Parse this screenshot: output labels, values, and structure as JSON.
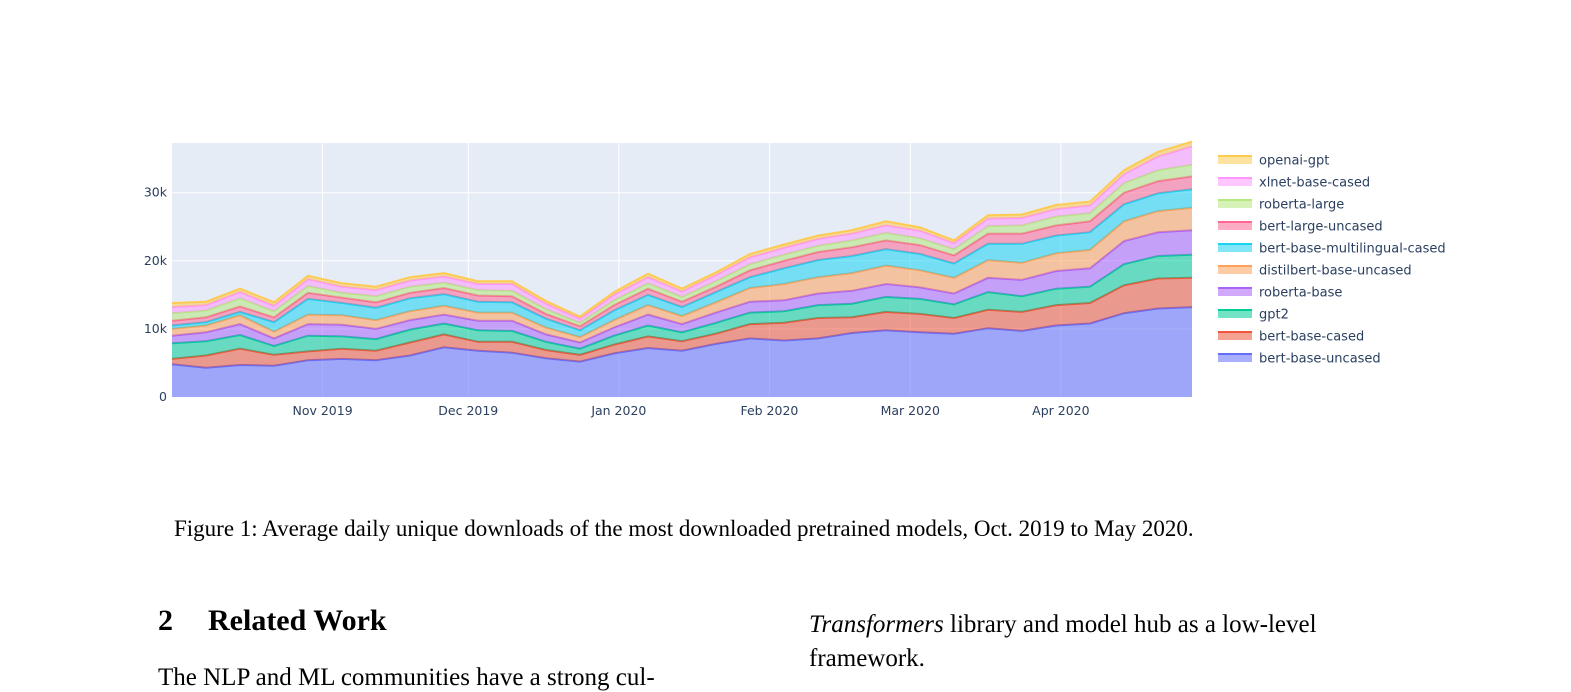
{
  "chart_data": {
    "type": "area",
    "stacked": true,
    "x": [
      "2019-10-01",
      "2019-10-08",
      "2019-10-15",
      "2019-10-22",
      "2019-10-29",
      "2019-11-05",
      "2019-11-12",
      "2019-11-19",
      "2019-11-26",
      "2019-12-03",
      "2019-12-10",
      "2019-12-17",
      "2019-12-24",
      "2019-12-31",
      "2020-01-07",
      "2020-01-14",
      "2020-01-21",
      "2020-01-28",
      "2020-02-04",
      "2020-02-11",
      "2020-02-18",
      "2020-02-25",
      "2020-03-03",
      "2020-03-10",
      "2020-03-17",
      "2020-03-24",
      "2020-03-31",
      "2020-04-07",
      "2020-04-14",
      "2020-04-21",
      "2020-04-28"
    ],
    "x_tick_labels": [
      {
        "date": "2019-11-01",
        "label": "Nov 2019"
      },
      {
        "date": "2019-12-01",
        "label": "Dec 2019"
      },
      {
        "date": "2020-01-01",
        "label": "Jan 2020"
      },
      {
        "date": "2020-02-01",
        "label": "Feb 2020"
      },
      {
        "date": "2020-03-01",
        "label": "Mar 2020"
      },
      {
        "date": "2020-04-01",
        "label": "Apr 2020"
      }
    ],
    "y_ticks": [
      0,
      10000,
      20000,
      30000
    ],
    "y_tick_labels": [
      "0",
      "10k",
      "20k",
      "30k"
    ],
    "xlim": [
      "2019-10-01",
      "2020-04-28"
    ],
    "ylim": [
      0,
      37300
    ],
    "grid": true,
    "legend_position": "right",
    "series": [
      {
        "name": "bert-base-uncased",
        "color": "#636efa",
        "values": [
          4800,
          4300,
          4700,
          4600,
          5400,
          5600,
          5400,
          6100,
          7300,
          6800,
          6500,
          5700,
          5200,
          6400,
          7200,
          6800,
          7800,
          8600,
          8300,
          8600,
          9400,
          9800,
          9500,
          9300,
          10100,
          9700,
          10500,
          10800,
          12300,
          13000,
          13200
        ]
      },
      {
        "name": "bert-base-cased",
        "color": "#ef553b",
        "values": [
          800,
          1800,
          2400,
          1600,
          1300,
          1500,
          1400,
          1900,
          1900,
          1300,
          1600,
          1200,
          1000,
          1300,
          1700,
          1400,
          1500,
          2100,
          2600,
          3000,
          2300,
          2700,
          2700,
          2300,
          2700,
          2800,
          3000,
          3000,
          4100,
          4400,
          4300
        ]
      },
      {
        "name": "gpt2",
        "color": "#00cc96",
        "values": [
          2300,
          2100,
          2000,
          1300,
          2300,
          1800,
          1700,
          1900,
          1600,
          1700,
          1600,
          1200,
          900,
          1300,
          1600,
          1300,
          1600,
          1700,
          1700,
          1900,
          2000,
          2200,
          2200,
          2000,
          2600,
          2300,
          2400,
          2400,
          3100,
          3300,
          3400
        ]
      },
      {
        "name": "roberta-base",
        "color": "#ab63fa",
        "values": [
          1100,
          1300,
          1600,
          1100,
          1700,
          1700,
          1500,
          1400,
          1300,
          1400,
          1500,
          1100,
          900,
          1200,
          1600,
          1200,
          1500,
          1600,
          1600,
          1700,
          1900,
          1900,
          1700,
          1600,
          2100,
          2400,
          2600,
          2700,
          3400,
          3500,
          3600
        ]
      },
      {
        "name": "distilbert-base-uncased",
        "color": "#ffa15a",
        "values": [
          1000,
          1000,
          1300,
          1000,
          1400,
          1400,
          1300,
          1300,
          1300,
          1200,
          1200,
          1000,
          800,
          1100,
          1400,
          1200,
          1500,
          2000,
          2400,
          2400,
          2600,
          2700,
          2500,
          2300,
          2600,
          2500,
          2600,
          2700,
          2900,
          3100,
          3300
        ]
      },
      {
        "name": "bert-base-multilingual-cased",
        "color": "#19d3f3",
        "values": [
          500,
          500,
          500,
          1400,
          2300,
          1800,
          1800,
          1900,
          1700,
          1600,
          1500,
          1300,
          1000,
          1400,
          1500,
          1300,
          1500,
          1600,
          2300,
          2500,
          2500,
          2400,
          2400,
          2100,
          2400,
          2800,
          2600,
          2600,
          2500,
          2600,
          2700
        ]
      },
      {
        "name": "bert-large-uncased",
        "color": "#ff6692",
        "values": [
          700,
          700,
          800,
          700,
          900,
          800,
          800,
          800,
          900,
          900,
          900,
          700,
          600,
          800,
          900,
          800,
          800,
          1000,
          1100,
          1200,
          1300,
          1300,
          1300,
          1200,
          1500,
          1500,
          1500,
          1600,
          1700,
          1800,
          1900
        ]
      },
      {
        "name": "roberta-large",
        "color": "#b6e880",
        "values": [
          1100,
          1000,
          1200,
          900,
          1000,
          700,
          900,
          900,
          800,
          800,
          800,
          700,
          500,
          700,
          800,
          700,
          800,
          900,
          900,
          900,
          1000,
          1100,
          1000,
          900,
          1100,
          1200,
          1300,
          1200,
          1400,
          1600,
          1700
        ]
      },
      {
        "name": "xlnet-base-cased",
        "color": "#ff97ff",
        "values": [
          900,
          800,
          900,
          800,
          1000,
          900,
          900,
          900,
          900,
          900,
          1000,
          800,
          600,
          800,
          900,
          800,
          900,
          1000,
          1000,
          1000,
          1000,
          1100,
          1100,
          900,
          1100,
          1100,
          1100,
          1100,
          1300,
          2000,
          2700
        ]
      },
      {
        "name": "openai-gpt",
        "color": "#fecb52",
        "values": [
          600,
          500,
          500,
          500,
          500,
          500,
          500,
          500,
          500,
          400,
          400,
          400,
          300,
          400,
          500,
          400,
          400,
          500,
          500,
          500,
          500,
          600,
          500,
          400,
          500,
          500,
          600,
          600,
          600,
          700,
          700
        ]
      }
    ]
  },
  "figure": {
    "caption": "Figure 1: Average daily unique downloads of the most downloaded pretrained models, Oct. 2019 to May 2020."
  },
  "section": {
    "number": "2",
    "title": "Related Work"
  },
  "body_text": {
    "left_line": "The NLP and ML communities have a strong cul-",
    "right_italic": "Transformers",
    "right_rest_line1": " library and model hub as a low-level",
    "right_line2": "framework."
  }
}
